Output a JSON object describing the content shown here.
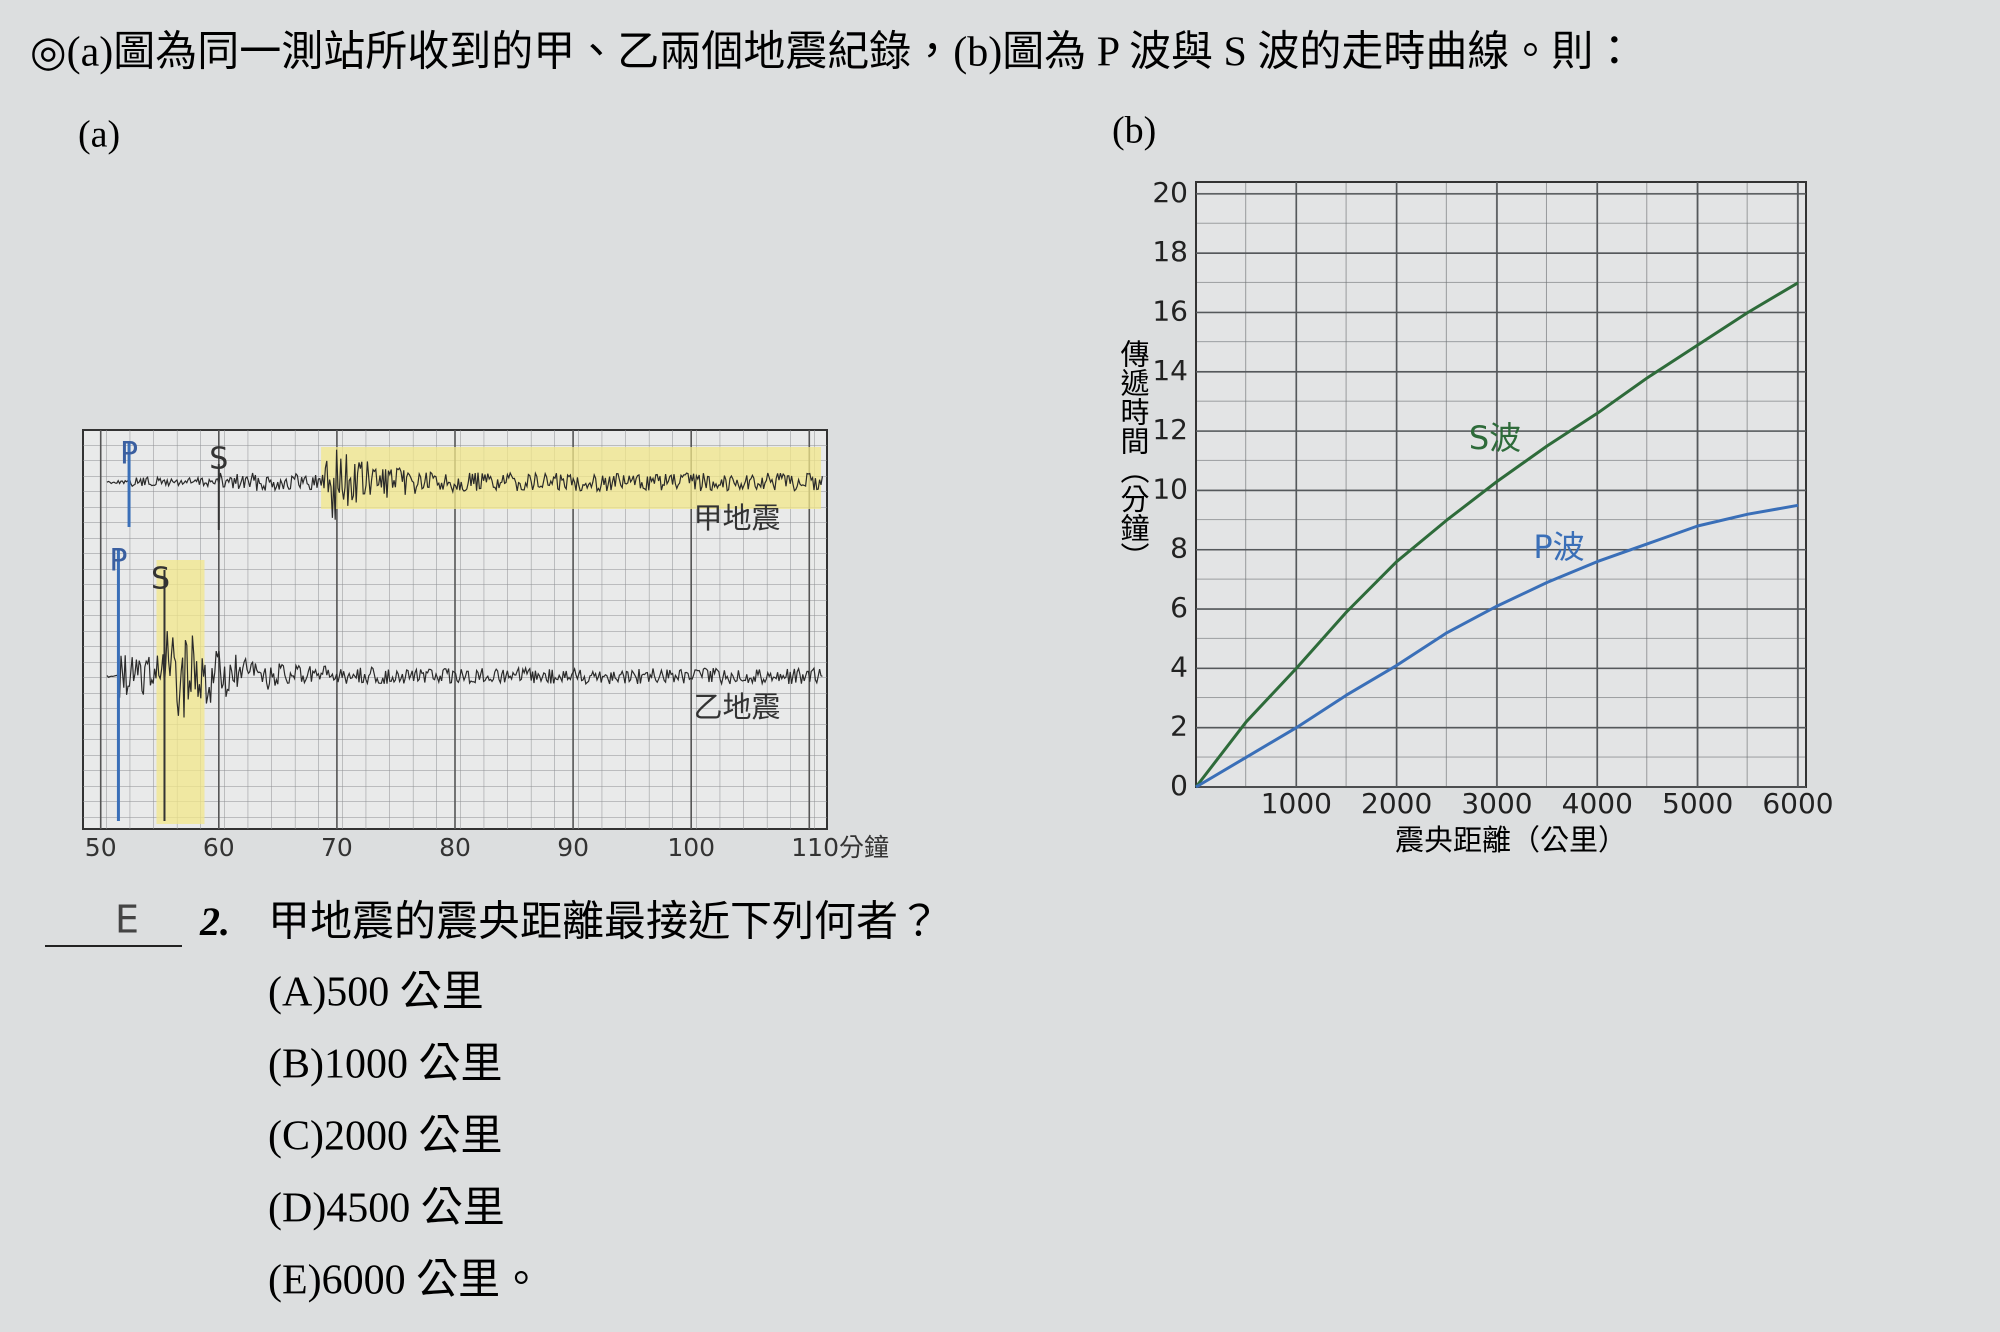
{
  "header": {
    "text": "◎(a)圖為同一測站所收到的甲、乙兩個地震紀錄，(b)圖為 P 波與 S 波的走時曲線。則："
  },
  "figure_a": {
    "label": "(a)",
    "xlim": [
      48.5,
      111.5
    ],
    "xticks": [
      50,
      60,
      70,
      80,
      90,
      100,
      {
        "value": 110,
        "label": "110分鐘"
      }
    ],
    "traces": [
      {
        "name": "甲地震",
        "p_label": "P",
        "s_label": "S",
        "p_time": 52.4,
        "s_time": 60,
        "peak_time": 69
      },
      {
        "name": "乙地震",
        "p_label": "P",
        "s_label": "S",
        "p_time": 51.5,
        "s_time": 55.4,
        "peak_time": 55.6
      }
    ]
  },
  "chart_data": {
    "type": "line",
    "label": "(b)",
    "x_label": "震央距離（公里）",
    "y_label": "傳遞時間（分鐘）",
    "x": [
      0,
      500,
      1000,
      1500,
      2000,
      2500,
      3000,
      3500,
      4000,
      4500,
      5000,
      5500,
      6000
    ],
    "series": [
      {
        "name": "S波",
        "color": "#2e6b3a",
        "values": [
          0,
          2.2,
          4.0,
          5.9,
          7.6,
          9.0,
          10.3,
          11.5,
          12.6,
          13.8,
          14.9,
          16.0,
          17.0
        ]
      },
      {
        "name": "P波",
        "color": "#3a6fb8",
        "values": [
          0,
          1.0,
          2.0,
          3.1,
          4.1,
          5.2,
          6.1,
          6.9,
          7.6,
          8.2,
          8.8,
          9.2,
          9.5
        ]
      }
    ],
    "xlim": [
      0,
      6080
    ],
    "ylim": [
      0,
      20.4
    ],
    "xticks": [
      1000,
      2000,
      3000,
      4000,
      5000,
      6000
    ],
    "yticks": [
      0,
      2,
      4,
      6,
      8,
      10,
      12,
      14,
      16,
      18,
      20
    ],
    "grid": true
  },
  "question": {
    "answer": "E",
    "number": "2.",
    "text": "甲地震的震央距離最接近下列何者？",
    "options": [
      "(A)500 公里",
      "(B)1000 公里",
      "(C)2000 公里",
      "(D)4500 公里",
      "(E)6000 公里。"
    ]
  }
}
